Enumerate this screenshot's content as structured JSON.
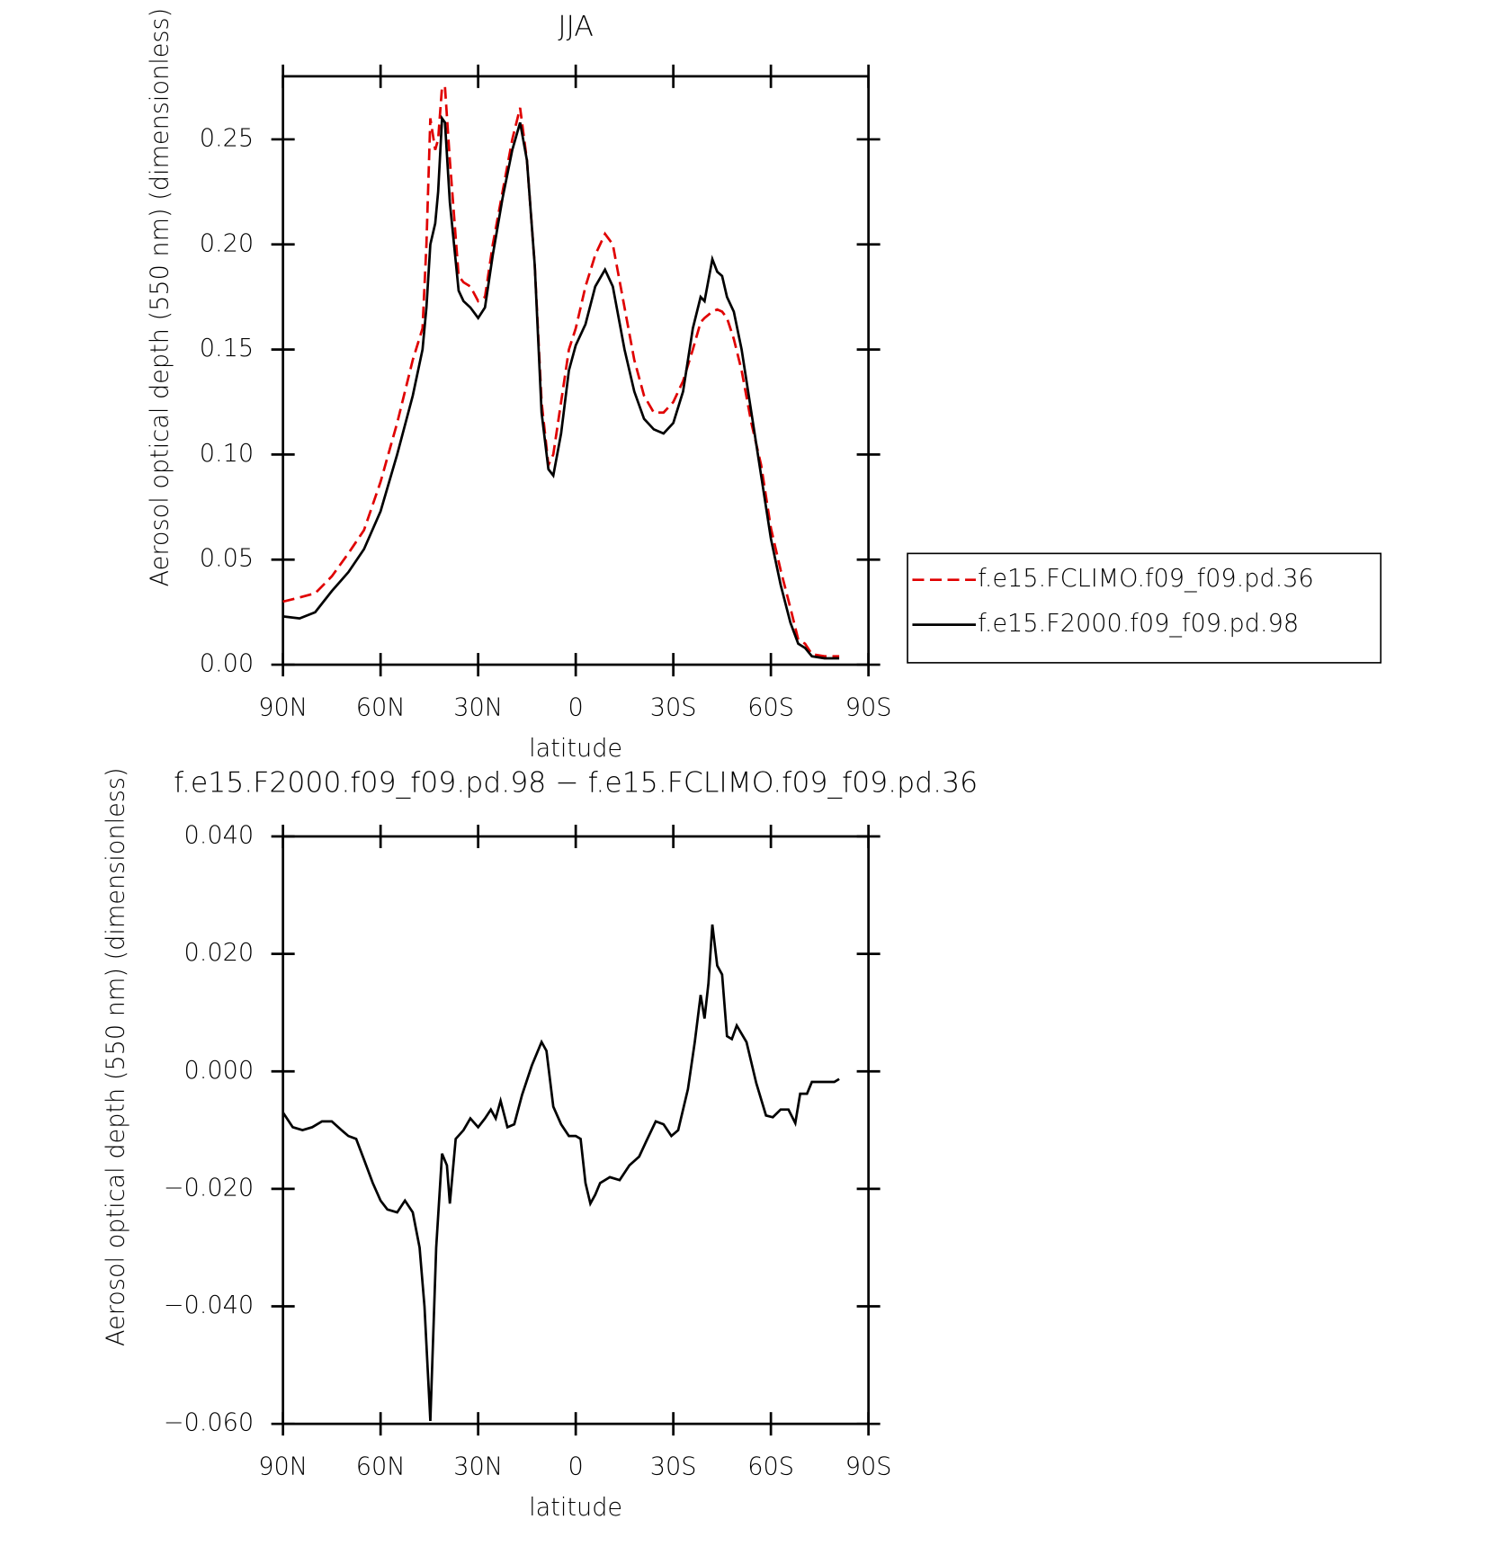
{
  "chart_data": [
    {
      "type": "line",
      "title": "JJA",
      "x_label": "latitude",
      "y_label": "Aerosol optical depth (550 nm) (dimensionless)",
      "xlim": [
        90,
        -90
      ],
      "xticks": [
        {
          "value": 90,
          "label": "90N"
        },
        {
          "value": 60,
          "label": "60N"
        },
        {
          "value": 30,
          "label": "30N"
        },
        0,
        {
          "value": -30,
          "label": "30S"
        },
        {
          "value": -60,
          "label": "60S"
        },
        {
          "value": -90,
          "label": "90S"
        }
      ],
      "ylim": [
        0,
        0.28
      ],
      "yticks": [
        {
          "value": 0,
          "label": "0.00"
        },
        0.05,
        {
          "value": 0.1,
          "label": "0.10"
        },
        0.15,
        {
          "value": 0.2,
          "label": "0.20"
        },
        0.25
      ],
      "x": [
        90,
        84.9,
        80.1,
        75,
        69.9,
        65.1,
        60,
        54.9,
        50.1,
        47.1,
        45.9,
        44.7,
        43.2,
        42.3,
        41.1,
        40.2,
        38.7,
        36,
        34.5,
        32.4,
        30,
        27.9,
        25.5,
        22.5,
        19.5,
        17.1,
        15,
        12.6,
        10.5,
        8.4,
        6.9,
        4.5,
        2.1,
        0,
        -3,
        -6,
        -9,
        -11.4,
        -15,
        -18,
        -21,
        -24,
        -27,
        -30,
        -33,
        -36,
        -38.4,
        -39.6,
        -42,
        -43.5,
        -45,
        -46.5,
        -48.6,
        -51,
        -54,
        -57,
        -60,
        -63,
        -66,
        -68.4,
        -70.5,
        -72.6,
        -76.5,
        -81
      ],
      "legend": "right",
      "series": [
        {
          "name": "f.e15.FCLIMO.f09_f09.pd.36",
          "color": "#e00000",
          "dashed": true,
          "values": [
            0.03,
            0.032,
            0.034,
            0.042,
            0.053,
            0.064,
            0.087,
            0.115,
            0.145,
            0.16,
            0.2,
            0.26,
            0.245,
            0.25,
            0.275,
            0.275,
            0.24,
            0.185,
            0.182,
            0.18,
            0.173,
            0.175,
            0.2,
            0.225,
            0.25,
            0.265,
            0.24,
            0.19,
            0.125,
            0.095,
            0.1,
            0.125,
            0.15,
            0.16,
            0.18,
            0.195,
            0.205,
            0.2,
            0.17,
            0.145,
            0.128,
            0.12,
            0.12,
            0.125,
            0.135,
            0.15,
            0.163,
            0.165,
            0.168,
            0.169,
            0.168,
            0.165,
            0.155,
            0.14,
            0.115,
            0.095,
            0.065,
            0.045,
            0.027,
            0.012,
            0.01,
            0.005,
            0.004,
            0.004
          ]
        },
        {
          "name": "f.e15.F2000.f09_f09.pd.98",
          "color": "#000000",
          "dashed": false,
          "values": [
            0.023,
            0.022,
            0.025,
            0.035,
            0.044,
            0.055,
            0.073,
            0.1,
            0.128,
            0.15,
            0.17,
            0.2,
            0.21,
            0.225,
            0.26,
            0.258,
            0.22,
            0.178,
            0.173,
            0.17,
            0.165,
            0.17,
            0.195,
            0.222,
            0.245,
            0.258,
            0.24,
            0.19,
            0.12,
            0.093,
            0.09,
            0.11,
            0.14,
            0.152,
            0.162,
            0.18,
            0.188,
            0.18,
            0.15,
            0.13,
            0.117,
            0.112,
            0.11,
            0.115,
            0.13,
            0.16,
            0.175,
            0.173,
            0.193,
            0.187,
            0.185,
            0.175,
            0.168,
            0.15,
            0.12,
            0.09,
            0.06,
            0.038,
            0.02,
            0.01,
            0.008,
            0.004,
            0.003,
            0.003
          ]
        }
      ]
    },
    {
      "type": "line",
      "title": "f.e15.F2000.f09_f09.pd.98 − f.e15.FCLIMO.f09_f09.pd.36",
      "x_label": "latitude",
      "y_label": "Aerosol optical depth (550 nm) (dimensionless)",
      "xlim": [
        90,
        -90
      ],
      "xticks": [
        {
          "value": 90,
          "label": "90N"
        },
        {
          "value": 60,
          "label": "60N"
        },
        {
          "value": 30,
          "label": "30N"
        },
        0,
        {
          "value": -30,
          "label": "30S"
        },
        {
          "value": -60,
          "label": "60S"
        },
        {
          "value": -90,
          "label": "90S"
        }
      ],
      "ylim": [
        -0.06,
        0.04
      ],
      "yticks": [
        {
          "value": -0.06,
          "label": "−0.060"
        },
        {
          "value": -0.04,
          "label": "−0.040"
        },
        {
          "value": -0.02,
          "label": "−0.020"
        },
        {
          "value": 0,
          "label": "0.000"
        },
        {
          "value": 0.02,
          "label": "0.020"
        },
        {
          "value": 0.04,
          "label": "0.040"
        }
      ],
      "x": [
        90,
        87,
        84,
        81,
        78,
        75,
        72,
        69.9,
        67.5,
        65.1,
        62.4,
        60,
        57.9,
        54.9,
        52.5,
        50.1,
        48,
        46.5,
        44.7,
        42.9,
        41.1,
        39.6,
        38.7,
        36.9,
        34.5,
        32.4,
        30,
        27.9,
        26.1,
        24.6,
        23.1,
        21,
        18.9,
        16.5,
        13.5,
        10.5,
        9,
        6.9,
        4.5,
        2.1,
        0,
        -1.5,
        -3,
        -4.5,
        -6,
        -7.5,
        -10.5,
        -13.5,
        -16.5,
        -19.5,
        -21.6,
        -24.6,
        -27,
        -29.4,
        -31.5,
        -34.5,
        -36.6,
        -38.4,
        -39.6,
        -40.8,
        -42,
        -43.5,
        -45,
        -46.5,
        -48,
        -49.5,
        -52.5,
        -55.5,
        -58.5,
        -60.6,
        -63,
        -65.4,
        -67.5,
        -69,
        -71.1,
        -72.6,
        -76.5,
        -79.5,
        -81
      ],
      "series": [
        {
          "color": "#000000",
          "dashed": false,
          "values": [
            -0.007,
            -0.0095,
            -0.01,
            -0.0095,
            -0.0085,
            -0.0085,
            -0.01,
            -0.011,
            -0.0115,
            -0.015,
            -0.019,
            -0.022,
            -0.0235,
            -0.024,
            -0.022,
            -0.024,
            -0.03,
            -0.04,
            -0.0595,
            -0.03,
            -0.014,
            -0.016,
            -0.0225,
            -0.0115,
            -0.01,
            -0.008,
            -0.0095,
            -0.008,
            -0.0065,
            -0.008,
            -0.005,
            -0.0095,
            -0.009,
            -0.004,
            0.001,
            0.005,
            0.0035,
            -0.006,
            -0.009,
            -0.011,
            -0.011,
            -0.0115,
            -0.019,
            -0.0225,
            -0.021,
            -0.019,
            -0.018,
            -0.0185,
            -0.016,
            -0.0145,
            -0.012,
            -0.0085,
            -0.009,
            -0.011,
            -0.01,
            -0.003,
            0.005,
            0.013,
            0.009,
            0.015,
            0.025,
            0.018,
            0.0165,
            0.006,
            0.0055,
            0.0078,
            0.005,
            -0.002,
            -0.0075,
            -0.0078,
            -0.0065,
            -0.0065,
            -0.0088,
            -0.0038,
            -0.0038,
            -0.0018,
            -0.0018,
            -0.0018,
            -0.0013
          ]
        }
      ]
    }
  ]
}
